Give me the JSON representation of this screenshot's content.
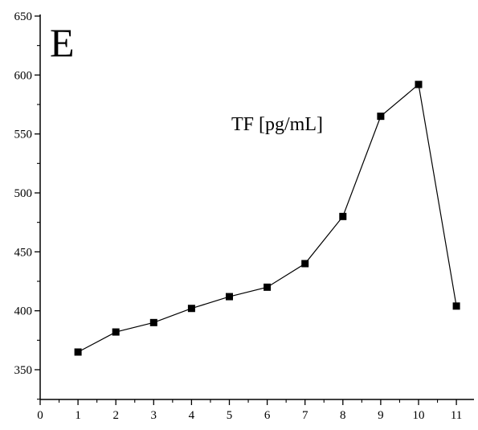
{
  "chart_data": {
    "type": "line",
    "panel_label": "E",
    "annotation": "TF [pg/mL]",
    "x": [
      1,
      2,
      3,
      4,
      5,
      6,
      7,
      8,
      9,
      10,
      11
    ],
    "series": [
      {
        "values": [
          365,
          382,
          390,
          402,
          412,
          420,
          440,
          480,
          565,
          592,
          404
        ]
      }
    ],
    "xlim": [
      0,
      11.5
    ],
    "ylim": [
      300,
      650
    ],
    "x_ticks": [
      "0",
      "1",
      "2",
      "3",
      "4",
      "5",
      "6",
      "7",
      "8",
      "9",
      "10",
      "11"
    ],
    "y_ticks": [
      "350",
      "400",
      "450",
      "500",
      "550",
      "600",
      "650"
    ],
    "grid": false,
    "legend": "none",
    "marker": "square",
    "colors": {
      "line": "#000000",
      "marker": "#000000",
      "axis": "#000000"
    }
  }
}
